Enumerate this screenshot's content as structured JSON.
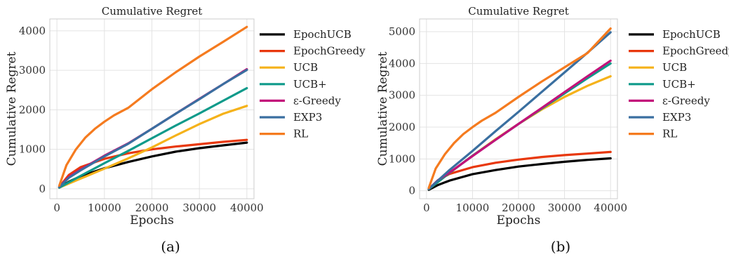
{
  "chart_data": [
    {
      "type": "line",
      "title": "Cumulative Regret",
      "xlabel": "Epochs",
      "ylabel": "Cumulative Regret",
      "caption": "(a)",
      "xlim": [
        -1500,
        41500
      ],
      "ylim": [
        -250,
        4300
      ],
      "xticks": [
        0,
        10000,
        20000,
        30000,
        40000
      ],
      "yticks": [
        0,
        1000,
        2000,
        3000,
        4000
      ],
      "grid": true,
      "legend_position": "right-outside",
      "series": [
        {
          "name": "EpochUCB",
          "color": "#000000",
          "x": [
            500,
            2500,
            5000,
            10000,
            15000,
            20000,
            25000,
            30000,
            35000,
            40000
          ],
          "y": [
            30,
            180,
            320,
            520,
            680,
            820,
            940,
            1030,
            1100,
            1170
          ]
        },
        {
          "name": "EpochGreedy",
          "color": "#e8380d",
          "x": [
            500,
            2500,
            5000,
            10000,
            15000,
            20000,
            25000,
            30000,
            35000,
            40000
          ],
          "y": [
            50,
            350,
            550,
            760,
            900,
            1000,
            1070,
            1130,
            1190,
            1240
          ]
        },
        {
          "name": "UCB",
          "color": "#f5b21a",
          "x": [
            500,
            5000,
            10000,
            15000,
            20000,
            25000,
            30000,
            35000,
            40000
          ],
          "y": [
            30,
            260,
            510,
            770,
            1050,
            1350,
            1640,
            1900,
            2100
          ]
        },
        {
          "name": "UCB+",
          "color": "#0e9a8a",
          "x": [
            500,
            5000,
            10000,
            15000,
            20000,
            25000,
            30000,
            35000,
            40000
          ],
          "y": [
            30,
            330,
            650,
            960,
            1280,
            1600,
            1910,
            2230,
            2550
          ]
        },
        {
          "name": "ε-Greedy",
          "color": "#c2127a",
          "x": [
            500,
            2500,
            5000,
            10000,
            15000,
            20000,
            25000,
            30000,
            35000,
            40000
          ],
          "y": [
            50,
            300,
            490,
            840,
            1150,
            1520,
            1900,
            2280,
            2650,
            3030
          ]
        },
        {
          "name": "EXP3",
          "color": "#3a6fa0",
          "x": [
            500,
            2500,
            5000,
            10000,
            15000,
            20000,
            25000,
            30000,
            35000,
            40000
          ],
          "y": [
            45,
            280,
            470,
            820,
            1140,
            1520,
            1900,
            2270,
            2650,
            3010
          ]
        },
        {
          "name": "RL",
          "color": "#f57b1f",
          "x": [
            500,
            2000,
            4000,
            6000,
            8000,
            10000,
            12000,
            15000,
            20000,
            25000,
            30000,
            35000,
            40000
          ],
          "y": [
            80,
            600,
            1000,
            1300,
            1520,
            1700,
            1860,
            2050,
            2520,
            2950,
            3350,
            3720,
            4100
          ]
        }
      ]
    },
    {
      "type": "line",
      "title": "Cumulative Regret",
      "xlabel": "Epochs",
      "ylabel": "Cumulative Regret",
      "caption": "(b)",
      "xlim": [
        -1500,
        41500
      ],
      "ylim": [
        -250,
        5400
      ],
      "xticks": [
        0,
        10000,
        20000,
        30000,
        40000
      ],
      "yticks": [
        0,
        1000,
        2000,
        3000,
        4000,
        5000
      ],
      "grid": true,
      "legend_position": "right-outside",
      "series": [
        {
          "name": "EpochUCB",
          "color": "#000000",
          "x": [
            500,
            2500,
            5000,
            10000,
            15000,
            20000,
            25000,
            30000,
            35000,
            40000
          ],
          "y": [
            30,
            180,
            320,
            520,
            650,
            760,
            840,
            910,
            970,
            1020
          ]
        },
        {
          "name": "EpochGreedy",
          "color": "#e8380d",
          "x": [
            500,
            2500,
            5000,
            10000,
            15000,
            20000,
            25000,
            30000,
            35000,
            40000
          ],
          "y": [
            60,
            330,
            530,
            740,
            880,
            980,
            1060,
            1120,
            1170,
            1220
          ]
        },
        {
          "name": "UCB",
          "color": "#f5b21a",
          "x": [
            500,
            5000,
            10000,
            15000,
            20000,
            25000,
            30000,
            35000,
            40000
          ],
          "y": [
            50,
            560,
            1100,
            1620,
            2100,
            2550,
            2950,
            3300,
            3600
          ]
        },
        {
          "name": "UCB+",
          "color": "#0e9a8a",
          "x": [
            500,
            5000,
            10000,
            15000,
            20000,
            25000,
            30000,
            35000,
            40000
          ],
          "y": [
            50,
            560,
            1100,
            1600,
            2100,
            2580,
            3060,
            3540,
            4000
          ]
        },
        {
          "name": "ε-Greedy",
          "color": "#c2127a",
          "x": [
            500,
            2500,
            5000,
            10000,
            15000,
            20000,
            25000,
            30000,
            35000,
            40000
          ],
          "y": [
            60,
            330,
            570,
            1090,
            1600,
            2100,
            2600,
            3100,
            3600,
            4090
          ]
        },
        {
          "name": "EXP3",
          "color": "#3a6fa0",
          "x": [
            500,
            5000,
            10000,
            15000,
            20000,
            25000,
            30000,
            35000,
            40000
          ],
          "y": [
            60,
            650,
            1250,
            1870,
            2480,
            3100,
            3720,
            4340,
            4980
          ]
        },
        {
          "name": "RL",
          "color": "#f57b1f",
          "x": [
            500,
            2000,
            4000,
            6000,
            8000,
            10000,
            12000,
            15000,
            20000,
            25000,
            30000,
            35000,
            40000
          ],
          "y": [
            90,
            700,
            1150,
            1500,
            1780,
            2000,
            2200,
            2450,
            2950,
            3430,
            3880,
            4330,
            5100
          ]
        }
      ]
    }
  ]
}
